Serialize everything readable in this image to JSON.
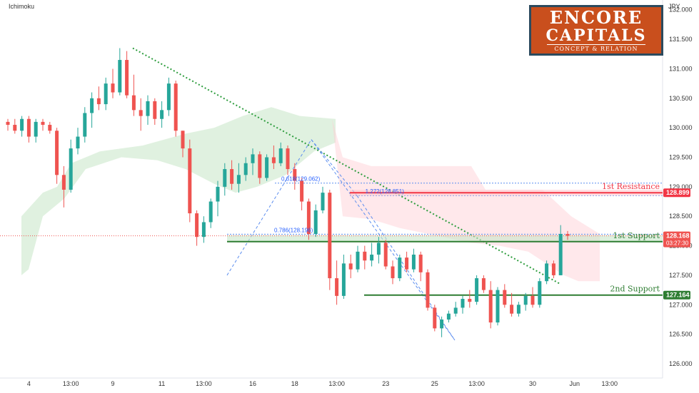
{
  "chart_data": {
    "type": "candlestick",
    "indicator": "Ichimoku",
    "currency": "JPY",
    "ylim": [
      125.9,
      132.15
    ],
    "y_ticks": [
      "132.000",
      "131.500",
      "131.000",
      "130.500",
      "130.000",
      "129.500",
      "129.000",
      "128.500",
      "128.000",
      "127.500",
      "127.000",
      "126.500",
      "126.000"
    ],
    "x_ticks": [
      {
        "label": "4",
        "i": 3
      },
      {
        "label": "13:00",
        "i": 9
      },
      {
        "label": "9",
        "i": 15
      },
      {
        "label": "11",
        "i": 22
      },
      {
        "label": "13:00",
        "i": 28
      },
      {
        "label": "16",
        "i": 35
      },
      {
        "label": "18",
        "i": 41
      },
      {
        "label": "13:00",
        "i": 47
      },
      {
        "label": "23",
        "i": 54
      },
      {
        "label": "25",
        "i": 61
      },
      {
        "label": "13:00",
        "i": 67
      },
      {
        "label": "30",
        "i": 75
      },
      {
        "label": "Jun",
        "i": 81
      },
      {
        "label": "13:00",
        "i": 86
      }
    ],
    "candles": [
      [
        130.1,
        130.15,
        129.95,
        130.05
      ],
      [
        130.05,
        130.15,
        129.9,
        129.95
      ],
      [
        129.95,
        130.2,
        129.85,
        130.15
      ],
      [
        130.15,
        130.2,
        129.75,
        129.85
      ],
      [
        129.85,
        130.15,
        129.75,
        130.1
      ],
      [
        130.1,
        130.15,
        129.95,
        130.05
      ],
      [
        130.05,
        130.1,
        129.9,
        129.95
      ],
      [
        129.95,
        130.0,
        129.05,
        129.2
      ],
      [
        129.2,
        129.35,
        128.65,
        128.95
      ],
      [
        128.95,
        129.8,
        128.9,
        129.65
      ],
      [
        129.65,
        130.0,
        129.55,
        129.85
      ],
      [
        129.85,
        130.35,
        129.75,
        130.25
      ],
      [
        130.25,
        130.6,
        130.0,
        130.5
      ],
      [
        130.5,
        130.7,
        130.3,
        130.4
      ],
      [
        130.4,
        130.85,
        130.3,
        130.75
      ],
      [
        130.75,
        131.0,
        130.5,
        130.6
      ],
      [
        130.6,
        131.35,
        130.55,
        131.15
      ],
      [
        131.15,
        131.3,
        130.5,
        130.55
      ],
      [
        130.55,
        130.9,
        130.2,
        130.3
      ],
      [
        130.3,
        130.5,
        129.95,
        130.2
      ],
      [
        130.2,
        130.55,
        130.05,
        130.45
      ],
      [
        130.45,
        130.5,
        130.05,
        130.15
      ],
      [
        130.15,
        130.45,
        130.0,
        130.3
      ],
      [
        130.3,
        130.85,
        130.2,
        130.75
      ],
      [
        130.75,
        130.8,
        129.85,
        129.95
      ],
      [
        129.95,
        129.95,
        129.5,
        129.65
      ],
      [
        129.65,
        129.8,
        128.4,
        128.55
      ],
      [
        128.55,
        128.6,
        128.0,
        128.15
      ],
      [
        128.15,
        128.5,
        128.05,
        128.4
      ],
      [
        128.4,
        128.8,
        128.3,
        128.75
      ],
      [
        128.75,
        129.1,
        128.5,
        129.0
      ],
      [
        129.0,
        129.4,
        128.85,
        129.3
      ],
      [
        129.3,
        129.45,
        128.95,
        129.05
      ],
      [
        129.05,
        129.4,
        128.9,
        129.2
      ],
      [
        129.2,
        129.5,
        129.1,
        129.4
      ],
      [
        129.4,
        129.65,
        129.2,
        129.55
      ],
      [
        129.55,
        129.6,
        129.05,
        129.15
      ],
      [
        129.15,
        129.55,
        129.1,
        129.5
      ],
      [
        129.5,
        129.7,
        129.3,
        129.4
      ],
      [
        129.4,
        129.75,
        129.35,
        129.65
      ],
      [
        129.65,
        129.7,
        129.2,
        129.3
      ],
      [
        129.3,
        129.4,
        128.95,
        129.1
      ],
      [
        129.1,
        129.15,
        128.6,
        128.75
      ],
      [
        128.75,
        128.8,
        128.1,
        128.2
      ],
      [
        128.2,
        128.7,
        128.15,
        128.6
      ],
      [
        128.6,
        129.0,
        128.55,
        128.9
      ],
      [
        128.9,
        128.95,
        127.25,
        127.45
      ],
      [
        127.45,
        127.75,
        127.0,
        127.15
      ],
      [
        127.15,
        127.85,
        127.1,
        127.7
      ],
      [
        127.7,
        127.85,
        127.45,
        127.6
      ],
      [
        127.6,
        128.0,
        127.55,
        127.9
      ],
      [
        127.9,
        128.0,
        127.6,
        127.75
      ],
      [
        127.75,
        128.05,
        127.65,
        127.85
      ],
      [
        127.85,
        128.15,
        127.7,
        128.05
      ],
      [
        128.05,
        128.1,
        127.6,
        127.65
      ],
      [
        127.65,
        127.75,
        127.35,
        127.45
      ],
      [
        127.45,
        127.85,
        127.4,
        127.8
      ],
      [
        127.8,
        127.9,
        127.55,
        127.6
      ],
      [
        127.6,
        127.95,
        127.55,
        127.85
      ],
      [
        127.85,
        127.9,
        127.4,
        127.55
      ],
      [
        127.55,
        127.6,
        126.9,
        126.95
      ],
      [
        126.95,
        127.0,
        126.55,
        126.6
      ],
      [
        126.6,
        126.8,
        126.45,
        126.75
      ],
      [
        126.75,
        126.9,
        126.7,
        126.85
      ],
      [
        126.85,
        127.05,
        126.8,
        126.95
      ],
      [
        126.95,
        127.15,
        126.85,
        127.1
      ],
      [
        127.1,
        127.25,
        126.95,
        127.05
      ],
      [
        127.05,
        127.5,
        127.0,
        127.45
      ],
      [
        127.45,
        127.5,
        127.2,
        127.25
      ],
      [
        127.25,
        127.4,
        126.6,
        126.7
      ],
      [
        126.7,
        127.3,
        126.65,
        127.25
      ],
      [
        127.25,
        127.35,
        126.95,
        127.0
      ],
      [
        127.0,
        127.2,
        126.8,
        126.85
      ],
      [
        126.85,
        127.05,
        126.8,
        127.0
      ],
      [
        127.0,
        127.2,
        126.9,
        127.15
      ],
      [
        127.15,
        127.3,
        126.95,
        127.0
      ],
      [
        127.0,
        127.45,
        126.95,
        127.4
      ],
      [
        127.4,
        127.75,
        127.35,
        127.7
      ],
      [
        127.7,
        127.75,
        127.45,
        127.5
      ],
      [
        127.5,
        128.35,
        127.5,
        128.2
      ],
      [
        128.2,
        128.25,
        128.1,
        128.17
      ]
    ],
    "levels": [
      {
        "name": "1st Resistance",
        "value": 128.899,
        "label": "128.899",
        "color": "#f23645"
      },
      {
        "name": "1st Support",
        "value": 128.07,
        "label": "128.070",
        "color": "#2e7d32"
      },
      {
        "name": "2nd Support",
        "value": 127.164,
        "label": "127.164",
        "color": "#2e7d32"
      }
    ],
    "current_price": {
      "value": 128.168,
      "label": "128.168",
      "timer": "03:27:30"
    },
    "fib_labels": [
      {
        "text": "0.618(129.062)",
        "i": 35,
        "v": 129.062
      },
      {
        "text": "1.272(128.851)",
        "i": 47,
        "v": 128.851
      },
      {
        "text": "0.786(128.196)",
        "i": 35,
        "v": 128.196
      }
    ]
  },
  "logo": {
    "line1": "ENCORE",
    "line2": "CAPITALS",
    "tagline": "CONCEPT & RELATION"
  },
  "colors": {
    "up": "#26a69a",
    "down": "#ef5350",
    "logo_bg": "#c94f1d",
    "logo_border": "#2b4a5e"
  }
}
